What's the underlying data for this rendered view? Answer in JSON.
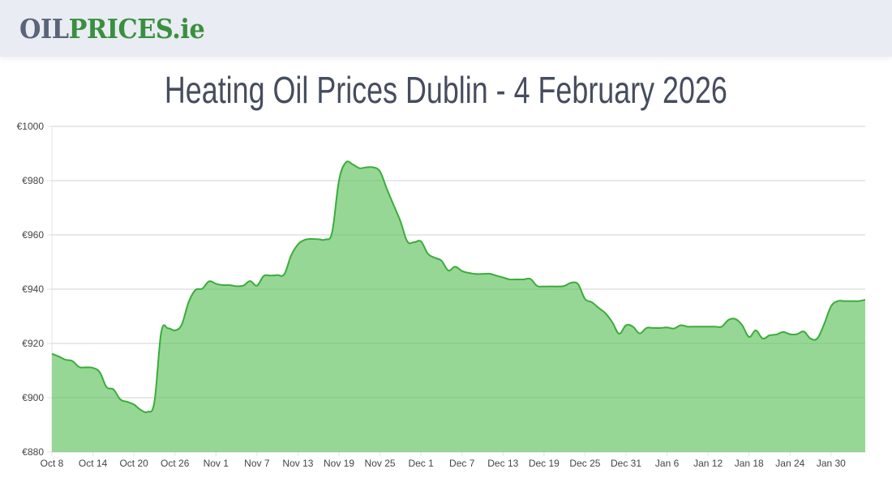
{
  "header": {
    "logo_part1": "OIL",
    "logo_part2": "PRICES.ie"
  },
  "page_title": "Heating Oil Prices Dublin - 4 February 2026",
  "chart_data": {
    "type": "area",
    "title": "",
    "xlabel": "",
    "ylabel": "",
    "ylim": [
      880,
      1000
    ],
    "y_ticks": [
      "€880",
      "€900",
      "€920",
      "€940",
      "€960",
      "€980",
      "€1000"
    ],
    "y_tick_values": [
      880,
      900,
      920,
      940,
      960,
      980,
      1000
    ],
    "x_tick_labels": [
      "Oct 8",
      "Oct 14",
      "Oct 20",
      "Oct 26",
      "Nov 1",
      "Nov 7",
      "Nov 13",
      "Nov 19",
      "Nov 25",
      "Dec 1",
      "Dec 7",
      "Dec 13",
      "Dec 19",
      "Dec 25",
      "Dec 31",
      "Jan 6",
      "Jan 12",
      "Jan 18",
      "Jan 24",
      "Jan 30"
    ],
    "grid": true,
    "colors": {
      "line": "#3aad3a",
      "fill": "#90d590"
    },
    "x": [
      "2025-10-08",
      "2025-10-09",
      "2025-10-10",
      "2025-10-11",
      "2025-10-12",
      "2025-10-13",
      "2025-10-14",
      "2025-10-15",
      "2025-10-16",
      "2025-10-17",
      "2025-10-18",
      "2025-10-19",
      "2025-10-20",
      "2025-10-21",
      "2025-10-22",
      "2025-10-23",
      "2025-10-24",
      "2025-10-25",
      "2025-10-26",
      "2025-10-27",
      "2025-10-28",
      "2025-10-29",
      "2025-10-30",
      "2025-10-31",
      "2025-11-01",
      "2025-11-02",
      "2025-11-03",
      "2025-11-04",
      "2025-11-05",
      "2025-11-06",
      "2025-11-07",
      "2025-11-08",
      "2025-11-09",
      "2025-11-10",
      "2025-11-11",
      "2025-11-12",
      "2025-11-13",
      "2025-11-14",
      "2025-11-15",
      "2025-11-16",
      "2025-11-17",
      "2025-11-18",
      "2025-11-19",
      "2025-11-20",
      "2025-11-21",
      "2025-11-22",
      "2025-11-23",
      "2025-11-24",
      "2025-11-25",
      "2025-11-26",
      "2025-11-27",
      "2025-11-28",
      "2025-11-29",
      "2025-11-30",
      "2025-12-01",
      "2025-12-02",
      "2025-12-03",
      "2025-12-04",
      "2025-12-05",
      "2025-12-06",
      "2025-12-07",
      "2025-12-08",
      "2025-12-09",
      "2025-12-10",
      "2025-12-11",
      "2025-12-12",
      "2025-12-13",
      "2025-12-14",
      "2025-12-15",
      "2025-12-16",
      "2025-12-17",
      "2025-12-18",
      "2025-12-19",
      "2025-12-20",
      "2025-12-21",
      "2025-12-22",
      "2025-12-23",
      "2025-12-24",
      "2025-12-25",
      "2025-12-26",
      "2025-12-27",
      "2025-12-28",
      "2025-12-29",
      "2025-12-30",
      "2025-12-31",
      "2026-01-01",
      "2026-01-02",
      "2026-01-03",
      "2026-01-04",
      "2026-01-05",
      "2026-01-06",
      "2026-01-07",
      "2026-01-08",
      "2026-01-09",
      "2026-01-10",
      "2026-01-11",
      "2026-01-12",
      "2026-01-13",
      "2026-01-14",
      "2026-01-15",
      "2026-01-16",
      "2026-01-17",
      "2026-01-18",
      "2026-01-19",
      "2026-01-20",
      "2026-01-21",
      "2026-01-22",
      "2026-01-23",
      "2026-01-24",
      "2026-01-25",
      "2026-01-26",
      "2026-01-27",
      "2026-01-28",
      "2026-01-29",
      "2026-01-30",
      "2026-01-31",
      "2026-02-01",
      "2026-02-02",
      "2026-02-03",
      "2026-02-04"
    ],
    "values": [
      916.2,
      915.2,
      914.0,
      913.5,
      911.3,
      911.2,
      911.0,
      909.4,
      903.9,
      903.1,
      899.4,
      898.5,
      897.5,
      895.5,
      894.8,
      898.5,
      924.2,
      925.6,
      924.8,
      927.0,
      935.2,
      939.7,
      940.2,
      942.9,
      942.0,
      941.5,
      941.5,
      941.1,
      941.3,
      943.0,
      941.3,
      944.9,
      945.0,
      945.2,
      945.5,
      952.4,
      956.5,
      958.2,
      958.5,
      958.4,
      958.3,
      961.0,
      980.0,
      986.7,
      986.0,
      984.6,
      984.9,
      984.9,
      983.4,
      977.0,
      971.0,
      965.0,
      957.6,
      957.3,
      957.6,
      953.1,
      951.6,
      950.5,
      946.9,
      948.3,
      946.7,
      946.0,
      945.6,
      945.6,
      945.7,
      945.0,
      944.3,
      943.6,
      943.6,
      943.6,
      943.8,
      941.2,
      941.0,
      941.0,
      941.0,
      941.2,
      942.4,
      941.8,
      936.4,
      935.2,
      933.1,
      931.1,
      927.8,
      923.6,
      926.7,
      926.2,
      923.7,
      925.7,
      925.7,
      925.7,
      925.9,
      925.5,
      926.7,
      926.2,
      926.2,
      926.2,
      926.2,
      926.2,
      926.2,
      928.7,
      929.0,
      926.7,
      922.4,
      924.8,
      921.8,
      923.0,
      923.3,
      924.2,
      923.4,
      923.4,
      924.4,
      921.8,
      921.9,
      927.2,
      933.7,
      935.6,
      935.6,
      935.6,
      935.6,
      936.1
    ]
  }
}
